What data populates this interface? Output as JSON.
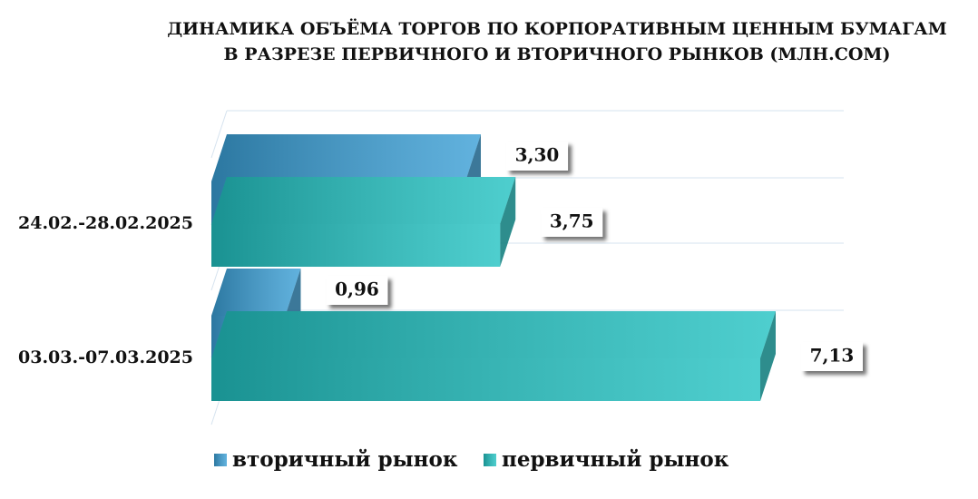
{
  "chart_data": {
    "type": "bar3d",
    "title": [
      "ДИНАМИКА ОБЪЁМА ТОРГОВ ПО КОРПОРАТИВНЫМ ЦЕННЫМ БУМАГАМ",
      "В РАЗРЕЗЕ ПЕРВИЧНОГО И ВТОРИЧНОГО РЫНКОВ  (МЛН.СОМ)"
    ],
    "categories": [
      "24.02.-28.02.2025",
      "03.03.-07.03.2025"
    ],
    "series": [
      {
        "name": "вторичный рынок",
        "color": "#3a9fd6",
        "values": [
          3.3,
          0.96
        ],
        "value_labels": [
          "3,30",
          "0,96"
        ]
      },
      {
        "name": "первичный рынок",
        "color": "#22c2c2",
        "values": [
          3.75,
          7.13
        ],
        "value_labels": [
          "3,75",
          "7,13"
        ]
      }
    ]
  }
}
